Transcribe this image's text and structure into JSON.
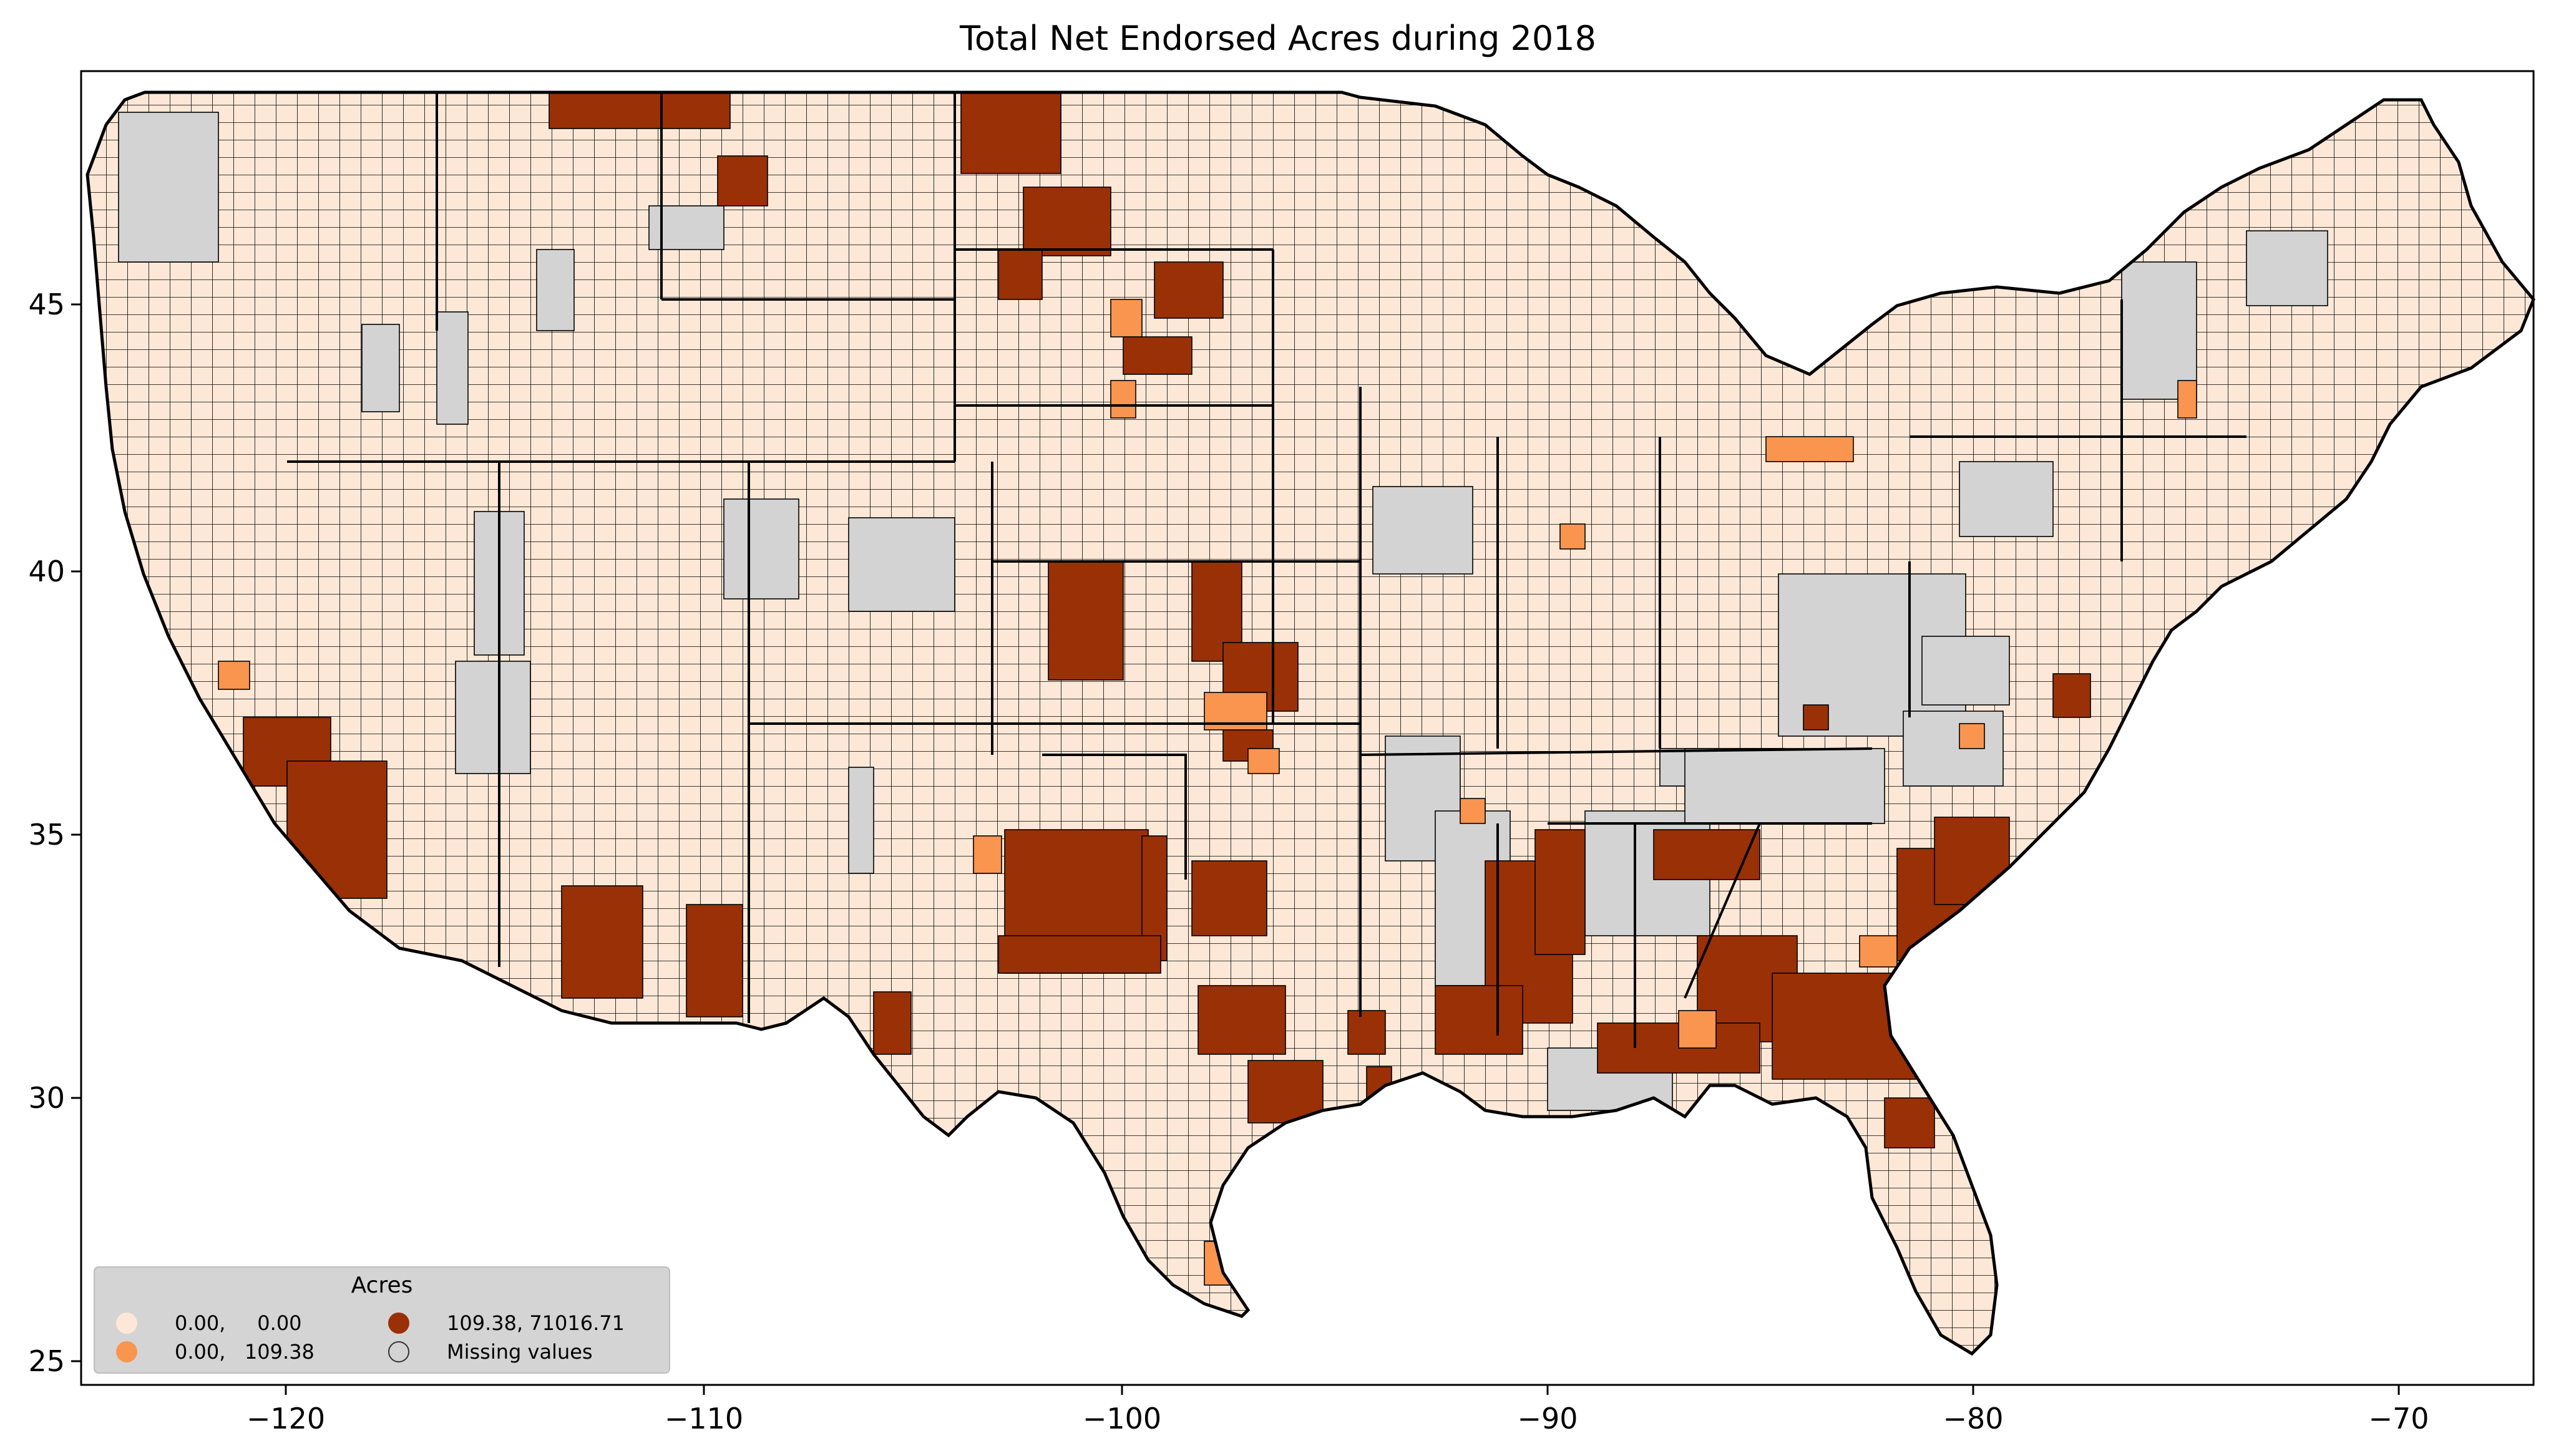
{
  "title": "Total Net Endorsed Acres during 2018",
  "colors": {
    "zero": "#fde8d7",
    "low": "#f9954e",
    "high": "#9a3006",
    "missing": "#d3d3d3",
    "border": "#000000"
  },
  "axes": {
    "x_ticks": [
      "−120",
      "−110",
      "−100",
      "−90",
      "−80",
      "−70"
    ],
    "y_ticks": [
      "25",
      "30",
      "35",
      "40",
      "45"
    ]
  },
  "legend": {
    "title": "Acres",
    "entries": [
      {
        "label": "0.00,     0.00",
        "color": "#fde8d7"
      },
      {
        "label": "0.00,   109.38",
        "color": "#f9954e"
      },
      {
        "label": "109.38, 71016.71",
        "color": "#9a3006"
      },
      {
        "label": "Missing values",
        "color": "#d3d3d3"
      }
    ]
  },
  "map_data": {
    "lon_range": [
      -125,
      -66.5
    ],
    "lat_range": [
      24.5,
      49.5
    ]
  }
}
